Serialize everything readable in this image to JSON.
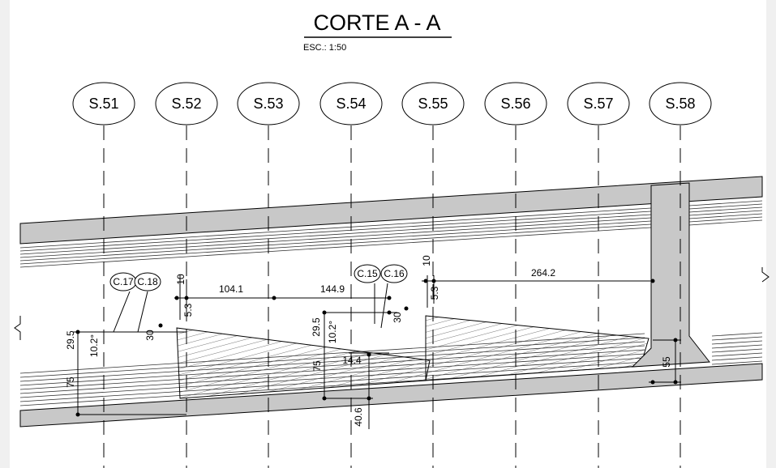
{
  "header": {
    "title": "CORTE A - A",
    "scale": "ESC.: 1:50"
  },
  "axes": [
    "S.51",
    "S.52",
    "S.53",
    "S.54",
    "S.55",
    "S.56",
    "S.57",
    "S.58"
  ],
  "callouts": [
    "C.17",
    "C.18",
    "C.15",
    "C.16"
  ],
  "dimensions": [
    "10",
    "5.3",
    "104.1",
    "144.9",
    "10",
    "5.3",
    "264.2",
    "29.5",
    "10.2°",
    "30",
    "75",
    "29.5",
    "10.2°",
    "30",
    "75",
    "14.4",
    "40.6",
    "55"
  ]
}
